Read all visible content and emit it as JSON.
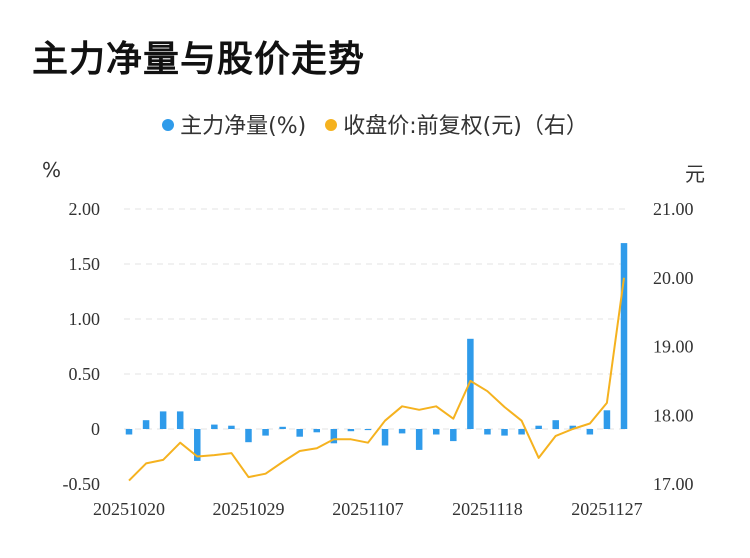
{
  "title": "主力净量与股价走势",
  "legend": {
    "series1": "主力净量(%)",
    "series2": "收盘价:前复权(元)（右）"
  },
  "units": {
    "left": "%",
    "right": "元"
  },
  "colors": {
    "bar": "#2F9BEA",
    "line": "#F5B21F",
    "grid": "#e3e3e3"
  },
  "chart_data": {
    "type": "bar",
    "x_tick_labels": [
      "20251020",
      "20251029",
      "20251107",
      "20251118",
      "20251127"
    ],
    "x_tick_indices": [
      0,
      7,
      14,
      21,
      28
    ],
    "yleft": {
      "ticks": [
        "2.00",
        "1.50",
        "1.00",
        "0.50",
        "0",
        "-0.50"
      ],
      "values": [
        2.0,
        1.5,
        1.0,
        0.5,
        0.0,
        -0.5
      ],
      "lim": [
        -0.5,
        2.0
      ]
    },
    "yright": {
      "ticks": [
        "21.00",
        "20.00",
        "19.00",
        "18.00",
        "17.00"
      ],
      "values": [
        21.0,
        20.0,
        19.0,
        18.0,
        17.0
      ],
      "lim": [
        17.0,
        21.0
      ]
    },
    "series": [
      {
        "name": "主力净量(%)",
        "axis": "left",
        "type": "bar",
        "values": [
          -0.05,
          0.08,
          0.16,
          0.16,
          -0.29,
          0.04,
          0.03,
          -0.12,
          -0.06,
          0.02,
          -0.07,
          -0.03,
          -0.13,
          -0.02,
          -0.01,
          -0.15,
          -0.04,
          -0.19,
          -0.05,
          -0.11,
          0.82,
          -0.05,
          -0.06,
          -0.05,
          0.03,
          0.08,
          0.03,
          -0.05,
          0.17,
          1.69
        ]
      },
      {
        "name": "收盘价:前复权(元)（右）",
        "axis": "right",
        "type": "line",
        "values": [
          17.05,
          17.3,
          17.35,
          17.6,
          17.4,
          17.42,
          17.45,
          17.1,
          17.15,
          17.32,
          17.48,
          17.52,
          17.65,
          17.65,
          17.6,
          17.92,
          18.13,
          18.08,
          18.13,
          17.95,
          18.5,
          18.35,
          18.12,
          17.92,
          17.38,
          17.7,
          17.8,
          17.88,
          18.18,
          20.0
        ]
      }
    ]
  }
}
